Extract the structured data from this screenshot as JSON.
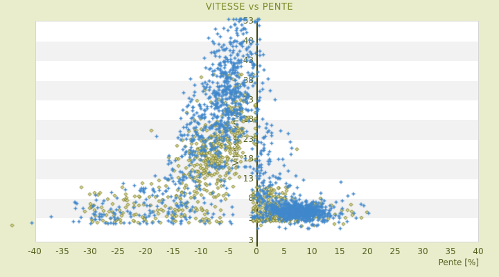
{
  "colors": {
    "page_background": "#e9edcc",
    "plot_background": "#ffffff",
    "band_gray": "#f2f2f2",
    "plot_border": "#d6d6d6",
    "title_text": "#7d8b2a",
    "tick_text": "#55601d",
    "axis_line": "#3d4514",
    "series_blue": "#4088cc",
    "series_olive_stroke": "#6b6b12",
    "series_olive_fill": "#d8d890"
  },
  "chart_data": {
    "type": "scatter",
    "title": "VITESSE vs PENTE",
    "xlabel": "Pente [%]",
    "ylabel": "Vitesse [km/h]",
    "xlim": [
      -40,
      40
    ],
    "ylim": [
      -3.2,
      53.5
    ],
    "x_ticks": [
      -40,
      -35,
      -30,
      -25,
      -20,
      -15,
      -10,
      -5,
      0,
      5,
      10,
      15,
      20,
      25,
      30,
      35,
      40
    ],
    "y_ticks": [
      3,
      8,
      13,
      18,
      23,
      28,
      33,
      38,
      43,
      48,
      53
    ],
    "y_axis_duplicate_bottom_label": "3",
    "grid": "alternating-horizontal-bands",
    "legend": "none",
    "zero_axis_at_x": 0,
    "seed": 7,
    "series": [
      {
        "name": "olive",
        "marker": "diamond",
        "color": "#6b6b12",
        "fill": "#d8d890",
        "clusters": [
          {
            "n": 340,
            "s": {
              "dist": "norm",
              "mean": -7,
              "sd": 3.4,
              "min": -19,
              "max": -0.3
            },
            "v": {
              "dist": "norm",
              "mean": 21,
              "sd": 6.5,
              "corr": 1.15,
              "min": 5,
              "max": 39.5
            }
          },
          {
            "n": 130,
            "s": {
              "dist": "unif",
              "min": -31,
              "max": -6
            },
            "v": {
              "dist": "pow",
              "base": 1.8,
              "range": 7,
              "exp": 1.4,
              "taper": 0.3,
              "max": 16
            }
          },
          {
            "n": 170,
            "s": {
              "dist": "norm",
              "mean": 2.3,
              "sd": 1.9,
              "min": -0.6,
              "max": 7.5
            },
            "v": {
              "dist": "pow",
              "base": 2.2,
              "range": 9,
              "exp": 1.6,
              "max": 12
            }
          },
          {
            "n": 70,
            "s": {
              "dist": "norm",
              "mean": 8,
              "sd": 4.2,
              "min": 0.8,
              "max": 20
            },
            "v": {
              "dist": "norm",
              "mean": 3.9,
              "sd": 1.5,
              "min": 0.6,
              "max": 8
            }
          }
        ],
        "extra_points": [
          [
            -44.1,
            1.2
          ],
          [
            7.2,
            20.5
          ],
          [
            -19,
            25.2
          ],
          [
            -6.2,
            39.6
          ],
          [
            -3.1,
            36.8
          ],
          [
            -9.4,
            35.5
          ],
          [
            18.9,
            3.1
          ],
          [
            16.4,
            5.0
          ],
          [
            13.5,
            6.2
          ],
          [
            -31.6,
            10.8
          ]
        ]
      },
      {
        "name": "blue",
        "marker": "plus",
        "color": "#4088cc",
        "clusters": [
          {
            "n": 430,
            "s": {
              "dist": "norm",
              "mean": -4.5,
              "sd": 2.4,
              "min": -13,
              "max": 0.6
            },
            "v": {
              "dist": "norm",
              "mean": 37,
              "sd": 8.5,
              "corr": 1.1,
              "min": 16,
              "max": 53.4
            }
          },
          {
            "n": 240,
            "s": {
              "dist": "norm",
              "mean": -9.5,
              "sd": 3.5,
              "min": -22,
              "max": -1.5
            },
            "v": {
              "dist": "norm",
              "mean": 25,
              "sd": 7,
              "corr": 1.6,
              "min": 6,
              "max": 47
            }
          },
          {
            "n": 160,
            "s": {
              "dist": "unif",
              "min": -33,
              "max": -4
            },
            "v": {
              "dist": "pow",
              "base": 1.5,
              "range": 6,
              "exp": 1.6,
              "taper": 0.35,
              "max": 18
            }
          },
          {
            "n": 90,
            "s": {
              "dist": "norm",
              "mean": 0.7,
              "sd": 0.9,
              "min": -0.8,
              "max": 3
            },
            "v": {
              "dist": "pow",
              "base": 3,
              "range": 38,
              "exp": 1.8,
              "max": 44
            }
          },
          {
            "n": 70,
            "s": {
              "dist": "norm",
              "mean": 3.2,
              "sd": 2.0,
              "min": 0.3,
              "max": 9
            },
            "v": {
              "dist": "pow",
              "base": 7,
              "range": 22,
              "exp": 2.2,
              "max": 34
            }
          },
          {
            "n": 620,
            "s": {
              "dist": "norm",
              "mean": 7.6,
              "sd": 2.5,
              "min": 1.8,
              "max": 15.5
            },
            "v": {
              "dist": "norm",
              "mean": 4.6,
              "sd": 1.05,
              "corr": -0.06,
              "min": 2.1,
              "max": 7.6
            }
          },
          {
            "n": 100,
            "s": {
              "dist": "norm",
              "mean": 9,
              "sd": 4.2,
              "min": 0.3,
              "max": 20
            },
            "v": {
              "dist": "norm",
              "mean": 4.3,
              "sd": 2.4,
              "min": 0.2,
              "max": 11
            }
          }
        ],
        "extra_points": [
          [
            -40.5,
            1.7
          ],
          [
            -37,
            3.2
          ],
          [
            19.4,
            6.1
          ],
          [
            20.3,
            4.2
          ],
          [
            17.5,
            9.0
          ],
          [
            -0.3,
            52.8
          ],
          [
            1.2,
            44.5
          ],
          [
            2.1,
            38.2
          ],
          [
            3.4,
            33.0
          ],
          [
            15.2,
            12.0
          ],
          [
            -24,
            11.7
          ]
        ]
      }
    ]
  }
}
